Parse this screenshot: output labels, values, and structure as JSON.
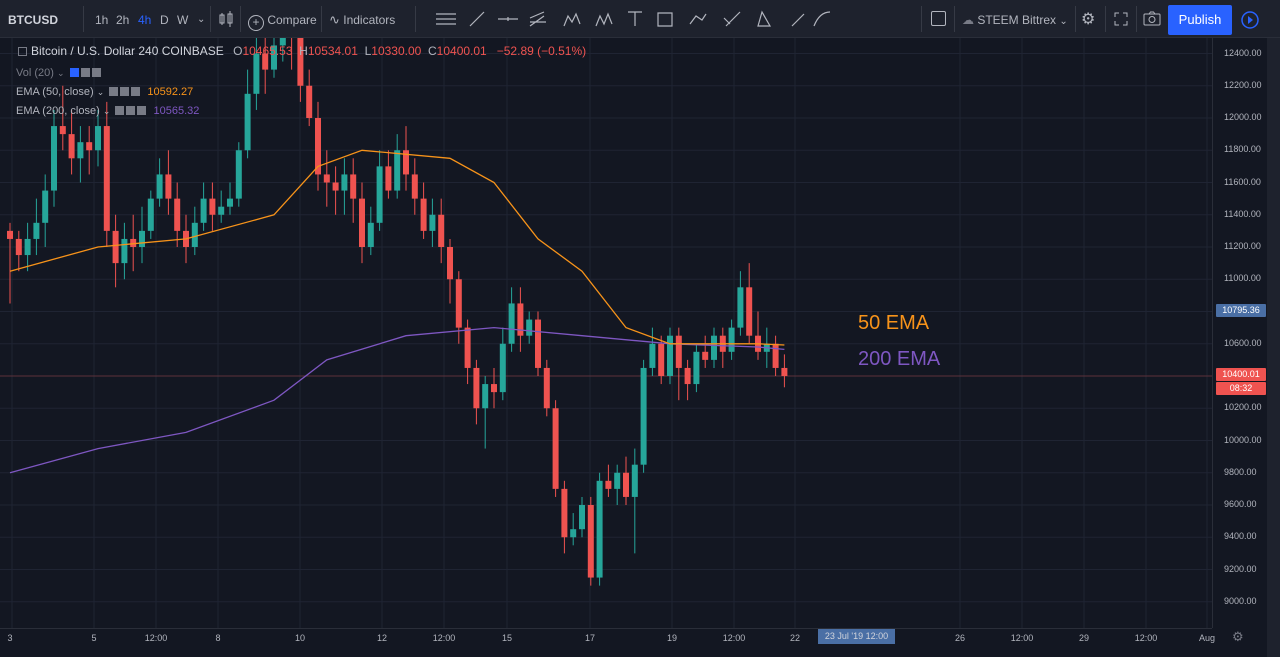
{
  "toolbar": {
    "symbol": "BTCUSD",
    "timeframes": [
      "1h",
      "2h",
      "4h",
      "D",
      "W"
    ],
    "active_timeframe": "4h",
    "compare_label": "Compare",
    "indicators_label": "Indicators",
    "exchange_label": "STEEM Bittrex",
    "publish_label": "Publish"
  },
  "legend": {
    "title": "Bitcoin / U.S. Dollar  240  COINBASE",
    "ohlc": {
      "o_key": "O",
      "o_val": "10465.53",
      "h_key": "H",
      "h_val": "10534.01",
      "l_key": "L",
      "l_val": "10330.00",
      "c_key": "C",
      "c_val": "10400.01",
      "change": "−52.89 (−0.51%)"
    },
    "vol_label": "Vol (20)",
    "ema50_label": "EMA (50, close)",
    "ema50_value": "10592.27",
    "ema200_label": "EMA (200, close)",
    "ema200_value": "10565.32"
  },
  "annotations": {
    "ema50_text": "50 EMA",
    "ema200_text": "200 EMA"
  },
  "price_scale": {
    "labels": [
      "12400.00",
      "12200.00",
      "12000.00",
      "11800.00",
      "11600.00",
      "11400.00",
      "11200.00",
      "11000.00",
      "10600.00",
      "10200.00",
      "10000.00",
      "9800.00",
      "9600.00",
      "9400.00",
      "9200.00",
      "9000.00"
    ],
    "crosshair_price": "10795.36",
    "last_price": "10400.01",
    "countdown": "08:32"
  },
  "time_scale": {
    "labels": [
      "3",
      "5",
      "12:00",
      "8",
      "10",
      "12",
      "12:00",
      "15",
      "17",
      "19",
      "12:00",
      "22",
      "26",
      "12:00",
      "29",
      "12:00",
      "Aug"
    ],
    "crosshair_time": "23 Jul '19   12:00"
  },
  "colors": {
    "background": "#131722",
    "up": "#26a69a",
    "down": "#ef5350",
    "ema50": "#f7931a",
    "ema200": "#7e57c2",
    "accent": "#2962ff"
  },
  "chart_data": {
    "type": "candlestick",
    "symbol": "BTCUSD",
    "interval": "240",
    "y_range": [
      8900,
      12500
    ],
    "candles": [
      [
        11300,
        11250,
        11350,
        10850
      ],
      [
        11250,
        11150,
        11300,
        11050
      ],
      [
        11150,
        11250,
        11350,
        11050
      ],
      [
        11250,
        11350,
        11500,
        11150
      ],
      [
        11350,
        11550,
        11650,
        11200
      ],
      [
        11550,
        11950,
        12050,
        11450
      ],
      [
        11950,
        11900,
        12200,
        11800
      ],
      [
        11900,
        11750,
        12050,
        11650
      ],
      [
        11750,
        11850,
        11950,
        11600
      ],
      [
        11850,
        11800,
        11950,
        11650
      ],
      [
        11800,
        11950,
        12050,
        11700
      ],
      [
        11950,
        11300,
        12100,
        11200
      ],
      [
        11300,
        11100,
        11400,
        10950
      ],
      [
        11100,
        11250,
        11350,
        11000
      ],
      [
        11250,
        11200,
        11400,
        11050
      ],
      [
        11200,
        11300,
        11450,
        11100
      ],
      [
        11300,
        11500,
        11550,
        11250
      ],
      [
        11500,
        11650,
        11750,
        11450
      ],
      [
        11650,
        11500,
        11800,
        11400
      ],
      [
        11500,
        11300,
        11600,
        11200
      ],
      [
        11300,
        11200,
        11400,
        11100
      ],
      [
        11200,
        11350,
        11450,
        11150
      ],
      [
        11350,
        11500,
        11600,
        11300
      ],
      [
        11500,
        11400,
        11600,
        11300
      ],
      [
        11400,
        11450,
        11550,
        11350
      ],
      [
        11450,
        11500,
        11600,
        11400
      ],
      [
        11500,
        11800,
        11850,
        11450
      ],
      [
        11800,
        12150,
        12300,
        11750
      ],
      [
        12150,
        12400,
        12500,
        12050
      ],
      [
        12400,
        12300,
        12500,
        12150
      ],
      [
        12300,
        12450,
        12550,
        12250
      ],
      [
        12450,
        12600,
        12700,
        12350
      ],
      [
        12600,
        12500,
        12700,
        12300
      ],
      [
        12500,
        12200,
        12600,
        12100
      ],
      [
        12200,
        12000,
        12300,
        11950
      ],
      [
        12000,
        11650,
        12100,
        11550
      ],
      [
        11650,
        11600,
        11800,
        11450
      ],
      [
        11600,
        11550,
        11700,
        11400
      ],
      [
        11550,
        11650,
        11750,
        11400
      ],
      [
        11650,
        11500,
        11750,
        11350
      ],
      [
        11500,
        11200,
        11600,
        11100
      ],
      [
        11200,
        11350,
        11450,
        11150
      ],
      [
        11350,
        11700,
        11800,
        11300
      ],
      [
        11700,
        11550,
        11800,
        11500
      ],
      [
        11550,
        11800,
        11900,
        11500
      ],
      [
        11800,
        11650,
        11950,
        11550
      ],
      [
        11650,
        11500,
        11750,
        11400
      ],
      [
        11500,
        11300,
        11600,
        11250
      ],
      [
        11300,
        11400,
        11500,
        11200
      ],
      [
        11400,
        11200,
        11500,
        11100
      ],
      [
        11200,
        11000,
        11250,
        10850
      ],
      [
        11000,
        10700,
        11050,
        10600
      ],
      [
        10700,
        10450,
        10750,
        10350
      ],
      [
        10450,
        10200,
        10500,
        10100
      ],
      [
        10200,
        10350,
        10400,
        9950
      ],
      [
        10350,
        10300,
        10450,
        10200
      ],
      [
        10300,
        10600,
        10700,
        10250
      ],
      [
        10600,
        10850,
        10950,
        10550
      ],
      [
        10850,
        10650,
        10950,
        10550
      ],
      [
        10650,
        10750,
        10800,
        10600
      ],
      [
        10750,
        10450,
        10800,
        10400
      ],
      [
        10450,
        10200,
        10500,
        10150
      ],
      [
        10200,
        9700,
        10250,
        9650
      ],
      [
        9700,
        9400,
        9750,
        9300
      ],
      [
        9400,
        9450,
        9550,
        9350
      ],
      [
        9450,
        9600,
        9650,
        9400
      ],
      [
        9600,
        9150,
        9650,
        9100
      ],
      [
        9150,
        9750,
        9800,
        9100
      ],
      [
        9750,
        9700,
        9850,
        9650
      ],
      [
        9700,
        9800,
        9850,
        9600
      ],
      [
        9800,
        9650,
        9900,
        9600
      ],
      [
        9650,
        9850,
        9950,
        9300
      ],
      [
        9850,
        10450,
        10500,
        9800
      ],
      [
        10450,
        10600,
        10700,
        10400
      ],
      [
        10600,
        10400,
        10650,
        10350
      ],
      [
        10400,
        10650,
        10700,
        10350
      ],
      [
        10650,
        10450,
        10700,
        10250
      ],
      [
        10450,
        10350,
        10500,
        10250
      ],
      [
        10350,
        10550,
        10600,
        10300
      ],
      [
        10550,
        10500,
        10650,
        10450
      ],
      [
        10500,
        10650,
        10700,
        10450
      ],
      [
        10650,
        10550,
        10700,
        10450
      ],
      [
        10550,
        10700,
        10750,
        10500
      ],
      [
        10700,
        10950,
        11050,
        10650
      ],
      [
        10950,
        10650,
        11100,
        10600
      ],
      [
        10650,
        10550,
        10800,
        10500
      ],
      [
        10550,
        10600,
        10700,
        10450
      ],
      [
        10600,
        10450,
        10650,
        10400
      ],
      [
        10450,
        10400,
        10534,
        10330
      ]
    ],
    "ema50": [
      [
        0,
        11050
      ],
      [
        10,
        11200
      ],
      [
        20,
        11250
      ],
      [
        30,
        11400
      ],
      [
        35,
        11700
      ],
      [
        40,
        11800
      ],
      [
        50,
        11750
      ],
      [
        55,
        11600
      ],
      [
        60,
        11250
      ],
      [
        65,
        11050
      ],
      [
        70,
        10700
      ],
      [
        75,
        10600
      ],
      [
        80,
        10600
      ],
      [
        85,
        10600
      ],
      [
        88,
        10592
      ]
    ],
    "ema200": [
      [
        0,
        9800
      ],
      [
        10,
        9950
      ],
      [
        20,
        10050
      ],
      [
        30,
        10250
      ],
      [
        36,
        10500
      ],
      [
        45,
        10650
      ],
      [
        55,
        10700
      ],
      [
        65,
        10650
      ],
      [
        75,
        10600
      ],
      [
        85,
        10580
      ],
      [
        88,
        10565
      ]
    ]
  }
}
